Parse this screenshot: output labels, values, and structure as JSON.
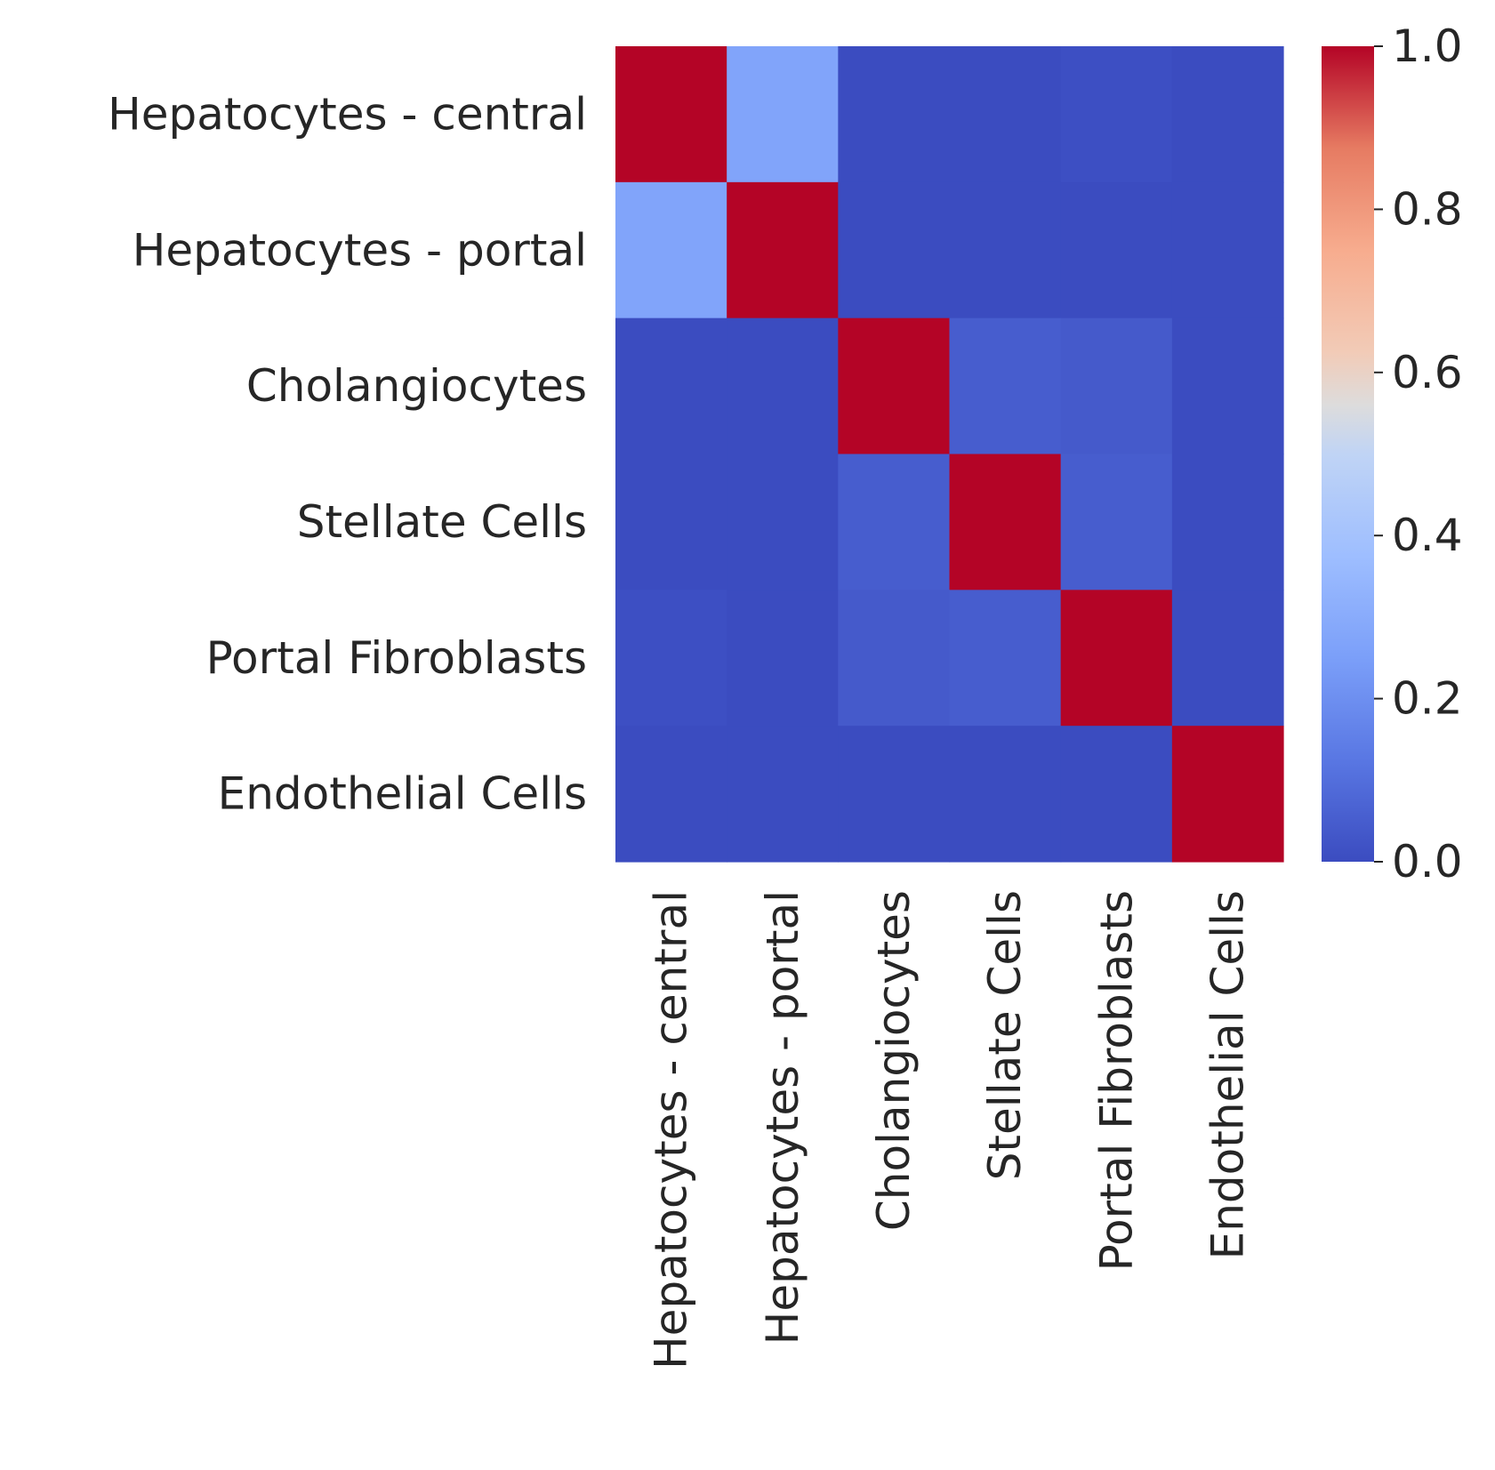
{
  "chart_data": {
    "type": "heatmap",
    "title": "",
    "xlabel": "",
    "ylabel": "",
    "rows": [
      "Hepatocytes - central",
      "Hepatocytes - portal",
      "Cholangiocytes",
      "Stellate Cells",
      "Portal Fibroblasts",
      "Endothelial Cells"
    ],
    "columns": [
      "Hepatocytes - central",
      "Hepatocytes - portal",
      "Cholangiocytes",
      "Stellate Cells",
      "Portal Fibroblasts",
      "Endothelial Cells"
    ],
    "values": [
      [
        1.0,
        0.27,
        0.0,
        0.0,
        0.01,
        0.0
      ],
      [
        0.27,
        1.0,
        0.0,
        0.0,
        0.0,
        0.0
      ],
      [
        0.0,
        0.0,
        1.0,
        0.05,
        0.04,
        0.0
      ],
      [
        0.0,
        0.0,
        0.05,
        1.0,
        0.05,
        0.0
      ],
      [
        0.01,
        0.0,
        0.04,
        0.05,
        1.0,
        0.0
      ],
      [
        0.0,
        0.0,
        0.0,
        0.0,
        0.0,
        1.0
      ]
    ],
    "colormap": "coolwarm",
    "vmin": 0.0,
    "vmax": 1.0,
    "colorbar": {
      "ticks": [
        0.0,
        0.2,
        0.4,
        0.6,
        0.8,
        1.0
      ],
      "tick_labels": [
        "0.0",
        "0.2",
        "0.4",
        "0.6",
        "0.8",
        "1.0"
      ]
    },
    "grid": false,
    "legend_placement": "right"
  }
}
